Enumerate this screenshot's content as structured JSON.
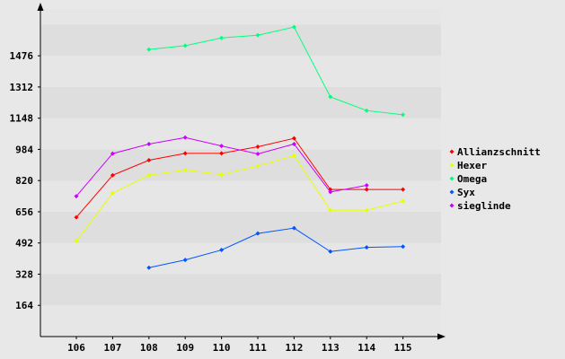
{
  "chart_data": {
    "type": "line",
    "title": "",
    "xlabel": "",
    "ylabel": "",
    "x": [
      "106",
      "107",
      "108",
      "109",
      "110",
      "111",
      "112",
      "113",
      "114",
      "115"
    ],
    "ylim": [
      0,
      1722
    ],
    "yticks": [
      "164",
      "328",
      "492",
      "656",
      "820",
      "984",
      "1148",
      "1312",
      "1476"
    ],
    "grid": "alternating horizontal bands",
    "legend": "right",
    "series": [
      {
        "name": "Allianzschnitt",
        "color": "#ff0000",
        "values": [
          627,
          848,
          927,
          963,
          963,
          998,
          1042,
          773,
          773,
          773
        ]
      },
      {
        "name": "Hexer",
        "color": "#e6ff00",
        "values": [
          502,
          754,
          848,
          875,
          851,
          897,
          951,
          664,
          664,
          712
        ]
      },
      {
        "name": "Omega",
        "color": "#00ff7f",
        "values": [
          null,
          null,
          1509,
          1529,
          1570,
          1584,
          1627,
          1260,
          1188,
          1166
        ]
      },
      {
        "name": "Syx",
        "color": "#0055ff",
        "values": [
          null,
          null,
          362,
          403,
          455,
          542,
          570,
          447,
          469,
          473
        ]
      },
      {
        "name": "sieglinde",
        "color": "#cc00ff",
        "values": [
          738,
          962,
          1012,
          1046,
          1002,
          960,
          1012,
          760,
          795,
          null
        ]
      }
    ]
  }
}
